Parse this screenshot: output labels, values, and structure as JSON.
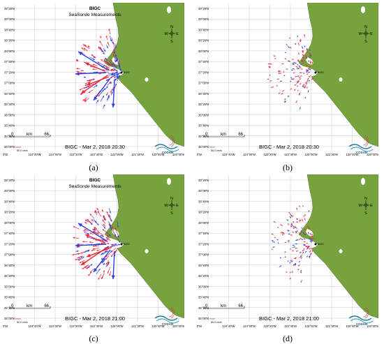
{
  "map": {
    "colors": {
      "land": "#77a33f",
      "grid": "#c8c8c8",
      "ocean": "#ffffff",
      "vec_red": "#e8283a",
      "vec_blue": "#2c3fe0",
      "coast_outline": "#3f5f22"
    },
    "lat_labels": [
      "39°20'N",
      "39°00'N",
      "38°40'N",
      "38°20'N",
      "38°00'N",
      "37°40'N",
      "37°20'N",
      "37°00'N",
      "36°40'N",
      "36°20'N",
      "36°00'N",
      "35°40'N",
      "35°20'N",
      "35°00'N"
    ],
    "lon_labels": [
      "124°40'W",
      "124°00'W",
      "123°20'W",
      "122°40'W",
      "122°00'W",
      "121°20'W",
      "120°40'W",
      "120°00'W"
    ],
    "lon_left_partial": "0'W",
    "title": "BIGC",
    "subtitle": "SeaSonde Measurements",
    "compass": {
      "n": "N",
      "s": "S",
      "w": "W",
      "e": "E"
    },
    "scale": {
      "left": "0",
      "mid": "km",
      "right": "66"
    },
    "speed_label": "50.0 cm/s",
    "site_label": "BIGC",
    "logo_text": "CODAR",
    "compass_icon": "compass-rose-icon",
    "logo_icon": "codar-wave-logo-icon"
  },
  "panels": [
    {
      "id": "a",
      "caption": "(a)",
      "timestamp": "BIGC - Mar 2, 2018 20:30",
      "show_title": true,
      "vector_strength": 1.0,
      "blue_fraction": 0.45
    },
    {
      "id": "b",
      "caption": "(b)",
      "timestamp": "BIGC - Mar 2, 2018 20:30",
      "show_title": false,
      "vector_strength": 0.45,
      "blue_fraction": 0.3
    },
    {
      "id": "c",
      "caption": "(c)",
      "timestamp": "BIGC - Mar 2, 2018 21:00",
      "show_title": true,
      "vector_strength": 1.0,
      "blue_fraction": 0.4
    },
    {
      "id": "d",
      "caption": "(d)",
      "timestamp": "BIGC - Mar 2, 2018 21:00",
      "show_title": false,
      "vector_strength": 0.45,
      "blue_fraction": 0.35
    }
  ]
}
